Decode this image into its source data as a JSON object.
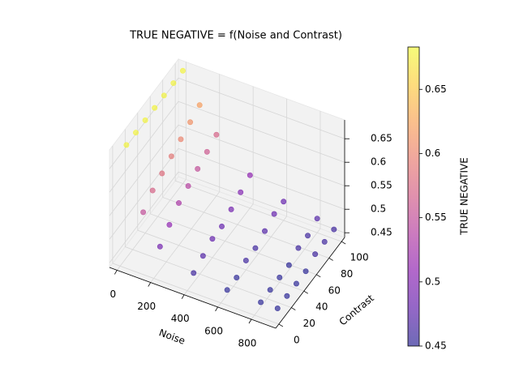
{
  "chart_data": {
    "type": "scatter3d",
    "title": "TRUE NEGATIVE = f(Noise and Contrast)",
    "x_label": "Noise",
    "y_label": "Contrast",
    "colormap": "plasma",
    "alpha": 0.6,
    "grid": true,
    "colorbar": {
      "label": "TRUE NEGATIVE",
      "lim": [
        0.45,
        0.683
      ],
      "ticks": [
        0.45,
        0.5,
        0.55,
        0.6,
        0.65
      ]
    },
    "xlim": [
      -45,
      945
    ],
    "ylim": [
      -5,
      105
    ],
    "zlim": [
      0.44,
      0.69
    ],
    "xticks": [
      0,
      200,
      400,
      600,
      800
    ],
    "yticks": [
      0,
      20,
      40,
      60,
      80,
      100
    ],
    "zticks": [
      0.45,
      0.5,
      0.55,
      0.6,
      0.65
    ],
    "x": [
      0,
      0,
      0,
      0,
      0,
      0,
      0,
      100,
      100,
      100,
      100,
      100,
      100,
      100,
      200,
      200,
      200,
      200,
      200,
      200,
      200,
      400,
      400,
      400,
      400,
      400,
      400,
      400,
      600,
      600,
      600,
      600,
      600,
      600,
      600,
      800,
      800,
      800,
      800,
      800,
      800,
      800,
      900,
      900,
      900,
      900,
      900,
      900,
      900
    ],
    "y": [
      10,
      25,
      40,
      55,
      70,
      85,
      100,
      10,
      25,
      40,
      55,
      70,
      85,
      100,
      10,
      25,
      40,
      55,
      70,
      85,
      100,
      10,
      25,
      40,
      55,
      70,
      85,
      100,
      10,
      25,
      40,
      55,
      70,
      85,
      100,
      10,
      25,
      40,
      55,
      70,
      85,
      100,
      10,
      25,
      40,
      55,
      70,
      85,
      100
    ],
    "z": [
      0.68,
      0.68,
      0.68,
      0.68,
      0.68,
      0.68,
      0.68,
      0.55,
      0.57,
      0.58,
      0.59,
      0.6,
      0.61,
      0.62,
      0.49,
      0.51,
      0.53,
      0.54,
      0.55,
      0.56,
      0.57,
      0.46,
      0.47,
      0.48,
      0.48,
      0.49,
      0.5,
      0.51,
      0.45,
      0.45,
      0.46,
      0.46,
      0.47,
      0.48,
      0.48,
      0.45,
      0.45,
      0.45,
      0.45,
      0.46,
      0.46,
      0.47,
      0.45,
      0.45,
      0.45,
      0.45,
      0.46,
      0.46,
      0.46
    ]
  }
}
